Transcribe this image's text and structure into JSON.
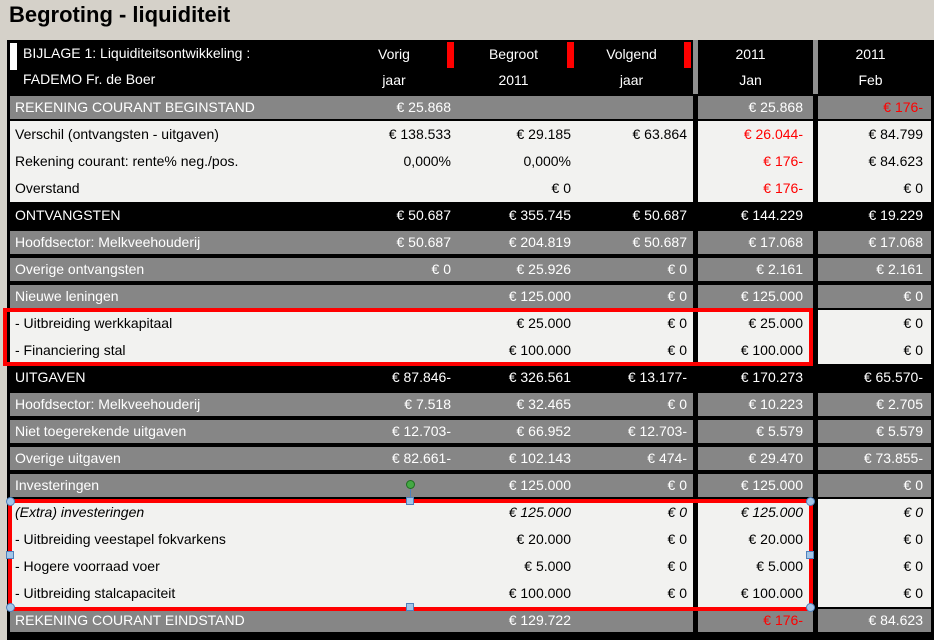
{
  "page": {
    "title": "Begroting - liquiditeit"
  },
  "colors": {
    "page_bg": "#d5d1c9",
    "row_black_bg": "#000000",
    "row_gray_bg": "#868686",
    "row_white_bg": "#f2f2f0",
    "negative_red": "#ff0000",
    "header_separator_gray": "#8f8f8f",
    "handle_blue": "#a3c6e8",
    "handle_blue_border": "#4f81bd",
    "rotation_handle_green": "#44a944"
  },
  "table": {
    "header": {
      "line1": "BIJLAGE 1: Liquiditeitsontwikkeling :",
      "line2": "FADEMO Fr. de Boer",
      "columns": [
        {
          "line1": "Vorig",
          "line2": "jaar",
          "comment_marker": true
        },
        {
          "line1": "Begroot",
          "line2": "2011",
          "comment_marker": true
        },
        {
          "line1": "Volgend",
          "line2": "jaar",
          "comment_marker": true
        },
        {
          "line1": "2011",
          "line2": "Jan",
          "comment_marker": false
        },
        {
          "line1": "2011",
          "line2": "Feb",
          "comment_marker": false
        }
      ]
    },
    "rows": [
      {
        "name": "rekening-courant-beginstand",
        "label": "REKENING COURANT BEGINSTAND",
        "style": "gray",
        "values": [
          "€ 25.868",
          "",
          "",
          "€ 25.868",
          "€ 176-"
        ],
        "red": [
          4
        ]
      },
      {
        "name": "verschil",
        "label": "Verschil (ontvangsten - uitgaven)",
        "style": "white",
        "values": [
          "€ 138.533",
          "€ 29.185",
          "€ 63.864",
          "€ 26.044-",
          "€ 84.799"
        ],
        "red": [
          3
        ]
      },
      {
        "name": "rente",
        "label": "Rekening courant: rente% neg./pos.",
        "style": "white",
        "values": [
          "0,000%",
          "0,000%",
          "",
          "€ 176-",
          "€ 84.623"
        ],
        "red": [
          3
        ]
      },
      {
        "name": "overstand",
        "label": "Overstand",
        "style": "white",
        "values": [
          "",
          "€ 0",
          "",
          "€ 176-",
          "€ 0"
        ],
        "red": [
          3
        ]
      },
      {
        "name": "ontvangsten",
        "label": "ONTVANGSTEN",
        "style": "black",
        "values": [
          "€ 50.687",
          "€ 355.745",
          "€ 50.687",
          "€ 144.229",
          "€ 19.229"
        ]
      },
      {
        "name": "hoofdsector-ontvangsten",
        "label": "Hoofdsector: Melkveehouderij",
        "style": "gray",
        "values": [
          "€ 50.687",
          "€ 204.819",
          "€ 50.687",
          "€ 17.068",
          "€ 17.068"
        ]
      },
      {
        "name": "overige-ontvangsten",
        "label": "Overige ontvangsten",
        "style": "gray",
        "values": [
          "€ 0",
          "€ 25.926",
          "€ 0",
          "€ 2.161",
          "€ 2.161"
        ]
      },
      {
        "name": "nieuwe-leningen",
        "label": "Nieuwe leningen",
        "style": "gray",
        "values": [
          "",
          "€ 125.000",
          "€ 0",
          "€ 125.000",
          "€ 0"
        ]
      },
      {
        "name": "uitbreiding-werkkapitaal",
        "label": "- Uitbreiding werkkapitaal",
        "style": "white",
        "values": [
          "",
          "€ 25.000",
          "€ 0",
          "€ 25.000",
          "€ 0"
        ]
      },
      {
        "name": "financiering-stal",
        "label": "- Financiering stal",
        "style": "white",
        "values": [
          "",
          "€ 100.000",
          "€ 0",
          "€ 100.000",
          "€ 0"
        ]
      },
      {
        "name": "uitgaven",
        "label": "UITGAVEN",
        "style": "black",
        "values": [
          "€ 87.846-",
          "€ 326.561",
          "€ 13.177-",
          "€ 170.273",
          "€ 65.570-"
        ]
      },
      {
        "name": "hoofdsector-uitgaven",
        "label": "Hoofdsector: Melkveehouderij",
        "style": "gray",
        "values": [
          "€ 7.518",
          "€ 32.465",
          "€ 0",
          "€ 10.223",
          "€ 2.705"
        ]
      },
      {
        "name": "niet-toegerekende-uitgaven",
        "label": "Niet toegerekende uitgaven",
        "style": "gray",
        "values": [
          "€ 12.703-",
          "€ 66.952",
          "€ 12.703-",
          "€ 5.579",
          "€ 5.579"
        ]
      },
      {
        "name": "overige-uitgaven",
        "label": "Overige uitgaven",
        "style": "gray",
        "values": [
          "€ 82.661-",
          "€ 102.143",
          "€ 474-",
          "€ 29.470",
          "€ 73.855-"
        ]
      },
      {
        "name": "investeringen",
        "label": "Investeringen",
        "style": "gray",
        "values": [
          "",
          "€ 125.000",
          "€ 0",
          "€ 125.000",
          "€ 0"
        ]
      },
      {
        "name": "extra-investeringen",
        "label": "(Extra) investeringen",
        "style": "white",
        "italic": true,
        "values": [
          "",
          "€ 125.000",
          "€ 0",
          "€ 125.000",
          "€ 0"
        ]
      },
      {
        "name": "uitbreiding-veestapel-fokvarkens",
        "label": "- Uitbreiding veestapel fokvarkens",
        "style": "white",
        "values": [
          "",
          "€ 20.000",
          "€ 0",
          "€ 20.000",
          "€ 0"
        ]
      },
      {
        "name": "hogere-voorraad-voer",
        "label": "- Hogere voorraad voer",
        "style": "white",
        "values": [
          "",
          "€ 5.000",
          "€ 0",
          "€ 5.000",
          "€ 0"
        ]
      },
      {
        "name": "uitbreiding-stalcapaciteit",
        "label": "- Uitbreiding stalcapaciteit",
        "style": "white",
        "values": [
          "",
          "€ 100.000",
          "€ 0",
          "€ 100.000",
          "€ 0"
        ]
      },
      {
        "name": "rekening-courant-eindstand",
        "label": "REKENING COURANT EINDSTAND",
        "style": "gray",
        "values": [
          "",
          "€ 129.722",
          "",
          "€ 176-",
          "€ 84.623"
        ],
        "red": [
          3
        ]
      }
    ]
  },
  "annotations": {
    "red_highlight_boxes": [
      {
        "covers": "- Uitbreiding werkkapitaal / - Financiering stal",
        "selected": false
      },
      {
        "covers": "(Extra) investeringen detail rows",
        "selected": true
      }
    ]
  }
}
